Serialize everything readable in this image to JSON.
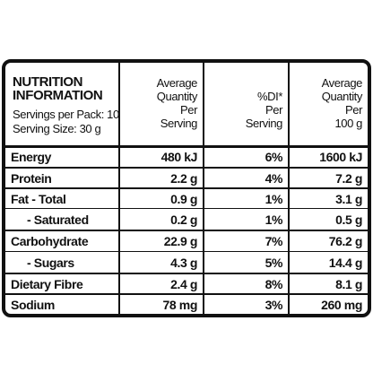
{
  "header": {
    "title": [
      "NUTRITION",
      "INFORMATION"
    ],
    "servings_per_pack": "Servings per Pack: 10",
    "serving_size": "Serving Size: 30 g",
    "columns": [
      [
        "Average",
        "Quantity",
        "Per",
        "Serving"
      ],
      [
        "%DI*",
        "Per",
        "Serving"
      ],
      [
        "Average",
        "Quantity",
        "Per",
        "100 g"
      ]
    ]
  },
  "table": {
    "rows": [
      [
        "Energy",
        "480 kJ",
        "6%",
        "1600 kJ"
      ],
      [
        "Protein",
        "2.2 g",
        "4%",
        "7.2 g"
      ],
      [
        "Fat - Total",
        "0.9 g",
        "1%",
        "3.1 g"
      ],
      [
        "- Saturated",
        "0.2 g",
        "1%",
        "0.5 g"
      ],
      [
        "Carbohydrate",
        "22.9 g",
        "7%",
        "76.2 g"
      ],
      [
        "- Sugars",
        "4.3 g",
        "5%",
        "14.4 g"
      ],
      [
        "Dietary Fibre",
        "2.4 g",
        "8%",
        "8.1 g"
      ],
      [
        "Sodium",
        "78 mg",
        "3%",
        "260 mg"
      ]
    ]
  }
}
